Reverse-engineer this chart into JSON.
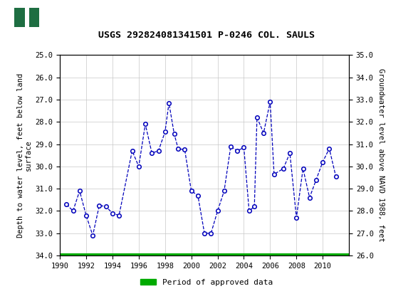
{
  "title": "USGS 292824081341501 P-0246 COL. SAULS",
  "ylabel_left": "Depth to water level, feet below land\nsurface",
  "ylabel_right": "Groundwater level above NAVD 1988, feet",
  "xlim": [
    1990,
    2012
  ],
  "ylim_left_top": 25.0,
  "ylim_left_bottom": 34.0,
  "ylim_right_top": 35.0,
  "ylim_right_bottom": 26.0,
  "yticks_left": [
    25.0,
    26.0,
    27.0,
    28.0,
    29.0,
    30.0,
    31.0,
    32.0,
    33.0,
    34.0
  ],
  "yticks_right": [
    35.0,
    34.0,
    33.0,
    32.0,
    31.0,
    30.0,
    29.0,
    28.0,
    27.0,
    26.0
  ],
  "xticks": [
    1990,
    1992,
    1994,
    1996,
    1998,
    2000,
    2002,
    2004,
    2006,
    2008,
    2010
  ],
  "line_color": "#0000bb",
  "marker_color": "#0000bb",
  "marker_face": "white",
  "line_style": "--",
  "marker_style": "o",
  "marker_size": 4,
  "grid_color": "#c8c8c8",
  "background_color": "#ffffff",
  "header_color": "#1e6e42",
  "legend_label": "Period of approved data",
  "legend_color": "#00aa00",
  "years": [
    1990.5,
    1991.0,
    1991.5,
    1992.0,
    1992.5,
    1993.0,
    1993.5,
    1994.0,
    1994.5,
    1995.5,
    1996.0,
    1996.5,
    1997.0,
    1997.5,
    1998.0,
    1998.3,
    1998.7,
    1999.0,
    1999.5,
    2000.0,
    2000.5,
    2001.0,
    2001.5,
    2002.0,
    2002.5,
    2003.0,
    2003.5,
    2004.0,
    2004.4,
    2004.8,
    2005.0,
    2005.5,
    2006.0,
    2006.3,
    2007.0,
    2007.5,
    2008.0,
    2008.5,
    2009.0,
    2009.5,
    2010.0,
    2010.5,
    2011.0
  ],
  "depths": [
    31.7,
    32.0,
    31.1,
    32.2,
    33.1,
    31.75,
    31.8,
    32.1,
    32.2,
    29.3,
    30.0,
    28.1,
    29.4,
    29.3,
    28.45,
    27.15,
    28.55,
    29.2,
    29.25,
    31.1,
    31.3,
    33.0,
    33.0,
    32.0,
    31.1,
    29.1,
    29.3,
    29.15,
    32.0,
    31.8,
    27.8,
    28.5,
    27.1,
    30.35,
    30.1,
    29.4,
    32.3,
    30.1,
    31.4,
    30.6,
    29.8,
    29.2,
    30.45
  ]
}
